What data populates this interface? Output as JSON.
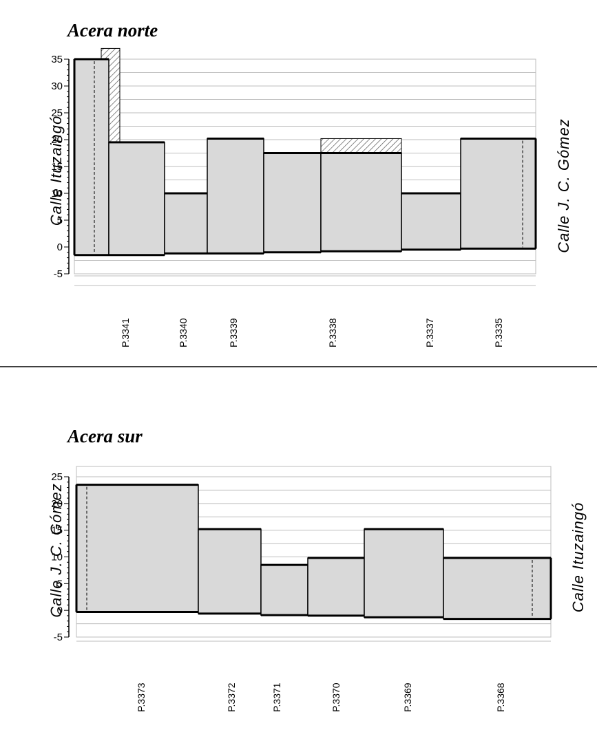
{
  "chart_data": [
    {
      "type": "bar",
      "title": "Acera norte",
      "ylim": [
        -5,
        35
      ],
      "yticks": [
        35,
        30,
        25,
        20,
        15,
        10,
        5,
        0,
        -5
      ],
      "grid": true,
      "left_label": "Calle Ituzaingó",
      "right_label": "Calle J. C. Gómez",
      "lots": [
        {
          "label": "P.3341",
          "height": 35,
          "base": -1.5,
          "hatch_top": 37
        },
        {
          "label": "",
          "height": 19.5,
          "base": -1.5
        },
        {
          "label": "P.3340",
          "height": 10,
          "base": -1.2
        },
        {
          "label": "P.3339",
          "height": 20.2,
          "base": -1.2
        },
        {
          "label": "",
          "height": 17.5,
          "base": -1.0
        },
        {
          "label": "P.3338",
          "height": 17.5,
          "base": -0.8,
          "hatch_top": 20.2
        },
        {
          "label": "P.3337",
          "height": 10,
          "base": -0.5
        },
        {
          "label": "P.3335",
          "height": 20.2,
          "base": -0.3
        }
      ]
    },
    {
      "type": "bar",
      "title": "Acera sur",
      "ylim": [
        -5,
        25
      ],
      "yticks": [
        25,
        20,
        15,
        10,
        5,
        0,
        -5
      ],
      "grid": true,
      "left_label": "Calle J. C. Gómez",
      "right_label": "Calle Ituzaingó",
      "lots": [
        {
          "label": "P.3373",
          "height": 23.5,
          "base": -0.3
        },
        {
          "label": "P.3372",
          "height": 15.2,
          "base": -0.6
        },
        {
          "label": "P.3371",
          "height": 8.5,
          "base": -0.9
        },
        {
          "label": "P.3370",
          "height": 9.8,
          "base": -1.0
        },
        {
          "label": "P.3369",
          "height": 15.2,
          "base": -1.3
        },
        {
          "label": "P.3368",
          "height": 9.8,
          "base": -1.6
        }
      ]
    }
  ]
}
